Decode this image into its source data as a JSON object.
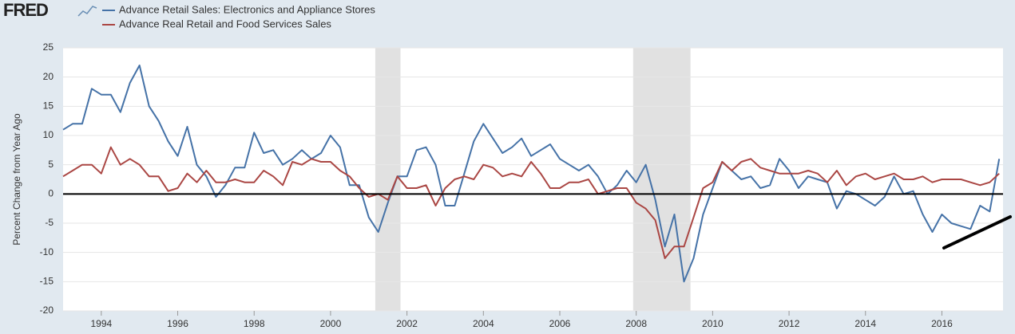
{
  "logo": "FRED",
  "chart_data": {
    "type": "line",
    "y_label": "Percent Change from Year Ago",
    "x": [
      1993,
      1993.25,
      1993.5,
      1993.75,
      1994,
      1994.25,
      1994.5,
      1994.75,
      1995,
      1995.25,
      1995.5,
      1995.75,
      1996,
      1996.25,
      1996.5,
      1996.75,
      1997,
      1997.25,
      1997.5,
      1997.75,
      1998,
      1998.25,
      1998.5,
      1998.75,
      1999,
      1999.25,
      1999.5,
      1999.75,
      2000,
      2000.25,
      2000.5,
      2000.75,
      2001,
      2001.25,
      2001.5,
      2001.75,
      2002,
      2002.25,
      2002.5,
      2002.75,
      2003,
      2003.25,
      2003.5,
      2003.75,
      2004,
      2004.25,
      2004.5,
      2004.75,
      2005,
      2005.25,
      2005.5,
      2005.75,
      2006,
      2006.25,
      2006.5,
      2006.75,
      2007,
      2007.25,
      2007.5,
      2007.75,
      2008,
      2008.25,
      2008.5,
      2008.75,
      2009,
      2009.25,
      2009.5,
      2009.75,
      2010,
      2010.25,
      2010.5,
      2010.75,
      2011,
      2011.25,
      2011.5,
      2011.75,
      2012,
      2012.25,
      2012.5,
      2012.75,
      2013,
      2013.25,
      2013.5,
      2013.75,
      2014,
      2014.25,
      2014.5,
      2014.75,
      2015,
      2015.25,
      2015.5,
      2015.75,
      2016,
      2016.25,
      2016.5,
      2016.75,
      2017,
      2017.25,
      2017.5
    ],
    "series": [
      {
        "name": "Advance Retail Sales: Electronics and Appliance Stores",
        "color": "#4572a7",
        "values": [
          11,
          12,
          12,
          18,
          17,
          17,
          14,
          19,
          22,
          15,
          12.5,
          9,
          6.5,
          11.5,
          5,
          3,
          -0.5,
          1.5,
          4.5,
          4.5,
          10.5,
          7,
          7.5,
          5,
          6,
          7.5,
          6,
          7,
          10,
          8,
          1.5,
          1.5,
          -4,
          -6.5,
          -1.5,
          3,
          3,
          7.5,
          8,
          5,
          -2,
          -2,
          3.5,
          9,
          12,
          9.5,
          7,
          8,
          9.5,
          6.5,
          7.5,
          8.5,
          6,
          5,
          4,
          5,
          3,
          0,
          1.5,
          4,
          2,
          5,
          -1,
          -9,
          -3.5,
          -15,
          -11,
          -3.5,
          1,
          5.5,
          4,
          2.5,
          3,
          1,
          1.5,
          6,
          4,
          1,
          3,
          2.5,
          2,
          -2.5,
          0.5,
          0,
          -1,
          -2,
          -0.5,
          3,
          0,
          0.5,
          -3.5,
          -6.5,
          -3.5,
          -5,
          -5.5,
          -6,
          -2,
          -3,
          6
        ]
      },
      {
        "name": "Advance Real Retail and Food Services Sales",
        "color": "#aa4643",
        "values": [
          3,
          4,
          5,
          5,
          3.5,
          8,
          5,
          6,
          5,
          3,
          3,
          0.5,
          1,
          3.5,
          2,
          4,
          2,
          2,
          2.5,
          2,
          2,
          4,
          3,
          1.5,
          5.5,
          5,
          6,
          5.5,
          5.5,
          4,
          3,
          1,
          -0.5,
          0,
          -1,
          3,
          1,
          1,
          1.5,
          -2,
          1,
          2.5,
          3,
          2.5,
          5,
          4.5,
          3,
          3.5,
          3,
          5.5,
          3.5,
          1,
          1,
          2,
          2,
          2.5,
          0,
          0.5,
          1,
          1,
          -1.5,
          -2.5,
          -4.5,
          -11,
          -9,
          -9,
          -4,
          1,
          2,
          5.5,
          4,
          5.5,
          6,
          4.5,
          4,
          3.5,
          3.5,
          3.5,
          4,
          3.5,
          2,
          4,
          1.5,
          3,
          3.5,
          2.5,
          3,
          3.5,
          2.5,
          2.5,
          3,
          2,
          2.5,
          2.5,
          2.5,
          2,
          1.5,
          2,
          3.5
        ]
      }
    ],
    "shaded_periods": [
      [
        2001.17,
        2001.83
      ],
      [
        2007.92,
        2009.42
      ]
    ],
    "xlim": [
      1993,
      2017.6
    ],
    "xticks": [
      1994,
      1996,
      1998,
      2000,
      2002,
      2004,
      2006,
      2008,
      2010,
      2012,
      2014,
      2016
    ],
    "ylim": [
      -20,
      25
    ],
    "yticks": [
      -20,
      -15,
      -10,
      -5,
      0,
      5,
      10,
      15,
      20,
      25
    ],
    "grid": true
  }
}
